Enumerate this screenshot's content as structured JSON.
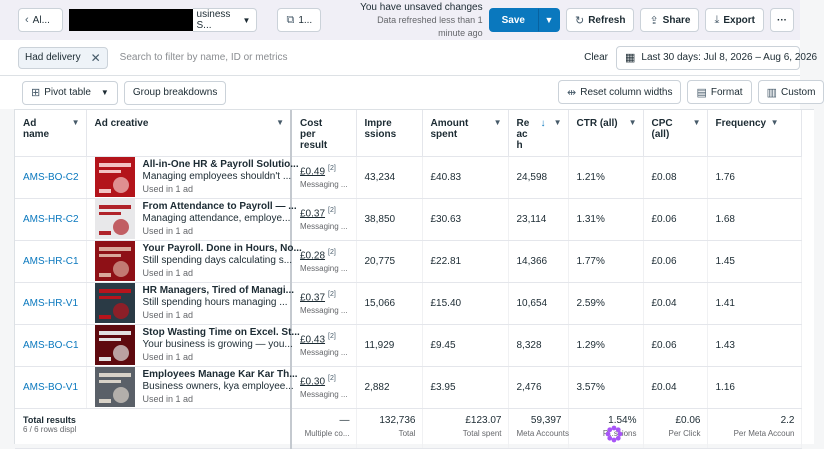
{
  "topbar": {
    "back_label": "Al...",
    "account_suffix": "usiness S...",
    "views_count": "1...",
    "unsaved_text": "You have unsaved changes",
    "refreshed_text": "Data refreshed less than 1 minute ago",
    "save_label": "Save",
    "refresh_label": "Refresh",
    "share_label": "Share",
    "export_label": "Export",
    "more_label": "···"
  },
  "filterbar": {
    "chip_label": "Had delivery",
    "search_placeholder": "Search to filter by name, ID or metrics",
    "clear_label": "Clear",
    "date_range": "Last 30 days: Jul 8, 2026 – Aug 6, 2026"
  },
  "toolbar": {
    "pivot_label": "Pivot table",
    "group_label": "Group breakdowns",
    "reset_label": "Reset column widths",
    "format_label": "Format",
    "customize_label": "Custom"
  },
  "columns": {
    "ad_name": "Ad name",
    "ad_creative": "Ad creative",
    "cost": "Cost per result",
    "impressions": "Impre ssions",
    "amount_spent": "Amount spent",
    "reach": "Re ac h",
    "ctr": "CTR (all)",
    "cpc": "CPC (all)",
    "frequency": "Frequency"
  },
  "rows": [
    {
      "name": "AMS-BO-C2",
      "title": "All-in-One HR & Payroll Solutio...",
      "desc": "Managing employees shouldn't ...",
      "used": "Used in 1 ad",
      "cost": "£0.49",
      "cost_sup": "[2]",
      "cost_sub": "Messaging ...",
      "impressions": "43,234",
      "spent": "£40.83",
      "reach": "24,598",
      "ctr": "1.21%",
      "cpc": "£0.08",
      "frequency": "1.76",
      "thumb_bg": "#b3141b",
      "thumb_fg": "#f2c3c3"
    },
    {
      "name": "AMS-HR-C2",
      "title": "From Attendance to Payroll — ...",
      "desc": "Managing attendance, employe...",
      "used": "Used in 1 ad",
      "cost": "£0.37",
      "cost_sup": "[2]",
      "cost_sub": "Messaging ...",
      "impressions": "38,850",
      "spent": "£30.63",
      "reach": "23,114",
      "ctr": "1.31%",
      "cpc": "£0.06",
      "frequency": "1.68",
      "thumb_bg": "#e8e8ea",
      "thumb_fg": "#b0232a"
    },
    {
      "name": "AMS-HR-C1",
      "title": "Your Payroll. Done in Hours, No...",
      "desc": "Still spending days calculating s...",
      "used": "Used in 1 ad",
      "cost": "£0.28",
      "cost_sup": "[2]",
      "cost_sub": "Messaging ...",
      "impressions": "20,775",
      "spent": "£22.81",
      "reach": "14,366",
      "ctr": "1.77%",
      "cpc": "£0.06",
      "frequency": "1.45",
      "thumb_bg": "#8e1016",
      "thumb_fg": "#d9a89b"
    },
    {
      "name": "AMS-HR-V1",
      "title": "HR Managers, Tired of Managi...",
      "desc": "Still spending hours managing ...",
      "used": "Used in 1 ad",
      "cost": "£0.37",
      "cost_sup": "[2]",
      "cost_sub": "Messaging ...",
      "impressions": "15,066",
      "spent": "£15.40",
      "reach": "10,654",
      "ctr": "2.59%",
      "cpc": "£0.04",
      "frequency": "1.41",
      "thumb_bg": "#2a3a45",
      "thumb_fg": "#b7141c"
    },
    {
      "name": "AMS-BO-C1",
      "title": "Stop Wasting Time on Excel. St...",
      "desc": "Your business is growing — you...",
      "used": "Used in 1 ad",
      "cost": "£0.43",
      "cost_sup": "[2]",
      "cost_sub": "Messaging ...",
      "impressions": "11,929",
      "spent": "£9.45",
      "reach": "8,328",
      "ctr": "1.29%",
      "cpc": "£0.06",
      "frequency": "1.43",
      "thumb_bg": "#5e0a0f",
      "thumb_fg": "#e1e1e1"
    },
    {
      "name": "AMS-BO-V1",
      "title": "Employees Manage Kar Kar Th...",
      "desc": "Business owners, kya employee...",
      "used": "Used in 1 ad",
      "cost": "£0.30",
      "cost_sup": "[2]",
      "cost_sub": "Messaging ...",
      "impressions": "2,882",
      "spent": "£3.95",
      "reach": "2,476",
      "ctr": "3.57%",
      "cpc": "£0.04",
      "frequency": "1.16",
      "thumb_bg": "#5a6068",
      "thumb_fg": "#d8d2c8"
    }
  ],
  "totals": {
    "title": "Total results",
    "subtitle": "6 / 6 rows displ",
    "cost": "—",
    "cost_sub": "Multiple co...",
    "impressions": "132,736",
    "impressions_sub": "Total",
    "spent": "£123.07",
    "spent_sub": "Total spent",
    "reach": "59,397",
    "reach_sub": "Meta Accounts",
    "ctr": "1.54%",
    "ctr_sub": "P...ssions",
    "cpc": "£0.06",
    "cpc_sub": "Per Click",
    "frequency": "2.2",
    "frequency_sub": "Per Meta Accoun"
  },
  "colors": {
    "primary": "#0a78be",
    "link": "#0a78be",
    "cursor": "#a855f7"
  }
}
